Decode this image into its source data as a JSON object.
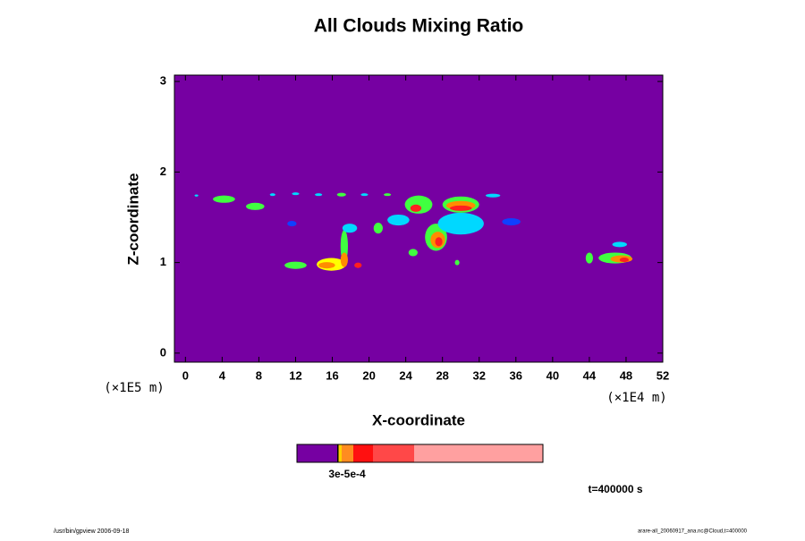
{
  "chart_data": {
    "type": "contour",
    "title": "All Clouds Mixing Ratio",
    "x_label": "X-coordinate",
    "y_label": "Z-coordinate",
    "x_unit": "(×1E4 m)",
    "y_unit": "(×1E5 m)",
    "xlim": [
      -1.2,
      52
    ],
    "ylim": [
      -0.1,
      3.07
    ],
    "xticks": [
      0,
      4,
      8,
      12,
      16,
      20,
      24,
      28,
      32,
      36,
      40,
      44,
      48,
      52
    ],
    "yticks": [
      0,
      1,
      2,
      3
    ],
    "background_color": "#7600a2",
    "palette": [
      "#7600a2",
      "#1040ff",
      "#00d8ff",
      "#40ff40",
      "#ffff00",
      "#ff8c00",
      "#ff2020"
    ],
    "blobs": [
      {
        "x": 1.2,
        "z": 1.74,
        "rx": 0.2,
        "rz": 0.012,
        "level": 2
      },
      {
        "x": 4.2,
        "z": 1.7,
        "rx": 1.2,
        "rz": 0.04,
        "level": 3
      },
      {
        "x": 7.6,
        "z": 1.62,
        "rx": 1.0,
        "rz": 0.04,
        "level": 3
      },
      {
        "x": 9.5,
        "z": 1.75,
        "rx": 0.3,
        "rz": 0.015,
        "level": 2
      },
      {
        "x": 12.0,
        "z": 1.76,
        "rx": 0.4,
        "rz": 0.015,
        "level": 2
      },
      {
        "x": 14.5,
        "z": 1.75,
        "rx": 0.4,
        "rz": 0.015,
        "level": 2
      },
      {
        "x": 17.0,
        "z": 1.75,
        "rx": 0.5,
        "rz": 0.02,
        "level": 3
      },
      {
        "x": 19.5,
        "z": 1.75,
        "rx": 0.4,
        "rz": 0.015,
        "level": 2
      },
      {
        "x": 22.0,
        "z": 1.75,
        "rx": 0.4,
        "rz": 0.015,
        "level": 3
      },
      {
        "x": 33.5,
        "z": 1.74,
        "rx": 0.8,
        "rz": 0.02,
        "level": 2
      },
      {
        "x": 11.6,
        "z": 1.43,
        "rx": 0.5,
        "rz": 0.03,
        "level": 1
      },
      {
        "x": 12.0,
        "z": 0.97,
        "rx": 1.2,
        "rz": 0.04,
        "level": 3
      },
      {
        "x": 15.9,
        "z": 0.98,
        "rx": 1.6,
        "rz": 0.07,
        "level": 4
      },
      {
        "x": 15.4,
        "z": 0.97,
        "rx": 0.9,
        "rz": 0.035,
        "level": 5
      },
      {
        "x": 17.3,
        "z": 1.18,
        "rx": 0.4,
        "rz": 0.18,
        "level": 3
      },
      {
        "x": 17.3,
        "z": 1.03,
        "rx": 0.4,
        "rz": 0.08,
        "level": 5
      },
      {
        "x": 18.8,
        "z": 0.97,
        "rx": 0.4,
        "rz": 0.03,
        "level": 6
      },
      {
        "x": 17.9,
        "z": 1.38,
        "rx": 0.8,
        "rz": 0.05,
        "level": 2
      },
      {
        "x": 21.0,
        "z": 1.38,
        "rx": 0.5,
        "rz": 0.06,
        "level": 3
      },
      {
        "x": 23.2,
        "z": 1.47,
        "rx": 1.2,
        "rz": 0.06,
        "level": 2
      },
      {
        "x": 24.8,
        "z": 1.11,
        "rx": 0.5,
        "rz": 0.04,
        "level": 3
      },
      {
        "x": 25.4,
        "z": 1.64,
        "rx": 1.5,
        "rz": 0.1,
        "level": 3
      },
      {
        "x": 25.1,
        "z": 1.6,
        "rx": 0.6,
        "rz": 0.04,
        "level": 6
      },
      {
        "x": 27.3,
        "z": 1.28,
        "rx": 1.2,
        "rz": 0.15,
        "level": 3
      },
      {
        "x": 27.5,
        "z": 1.25,
        "rx": 0.8,
        "rz": 0.09,
        "level": 5
      },
      {
        "x": 27.6,
        "z": 1.23,
        "rx": 0.4,
        "rz": 0.05,
        "level": 6
      },
      {
        "x": 30.0,
        "z": 1.43,
        "rx": 2.5,
        "rz": 0.12,
        "level": 2
      },
      {
        "x": 30.0,
        "z": 1.64,
        "rx": 2.0,
        "rz": 0.09,
        "level": 3
      },
      {
        "x": 30.0,
        "z": 1.63,
        "rx": 1.6,
        "rz": 0.05,
        "level": 5
      },
      {
        "x": 30.0,
        "z": 1.6,
        "rx": 1.2,
        "rz": 0.03,
        "level": 6
      },
      {
        "x": 29.6,
        "z": 1.0,
        "rx": 0.25,
        "rz": 0.03,
        "level": 3
      },
      {
        "x": 35.5,
        "z": 1.45,
        "rx": 1.0,
        "rz": 0.04,
        "level": 1
      },
      {
        "x": 44.0,
        "z": 1.05,
        "rx": 0.4,
        "rz": 0.06,
        "level": 3
      },
      {
        "x": 47.3,
        "z": 1.2,
        "rx": 0.8,
        "rz": 0.03,
        "level": 2
      },
      {
        "x": 46.8,
        "z": 1.05,
        "rx": 1.8,
        "rz": 0.06,
        "level": 3
      },
      {
        "x": 47.5,
        "z": 1.04,
        "rx": 1.2,
        "rz": 0.04,
        "level": 5
      },
      {
        "x": 47.8,
        "z": 1.03,
        "rx": 0.5,
        "rz": 0.025,
        "level": 6
      }
    ],
    "colorbar": {
      "colors": [
        "#7600a2",
        "#000000",
        "#ffd000",
        "#ff8c20",
        "#ff1010",
        "#ff4848",
        "#ffa0a0"
      ],
      "label": "3e-5e-4"
    },
    "time_label": "t=400000 s",
    "footer_left": "/usr/bin/gpview 2006-09-18",
    "footer_right": "arare-all_20060917_ana.nc@Cloud,t=400000"
  }
}
